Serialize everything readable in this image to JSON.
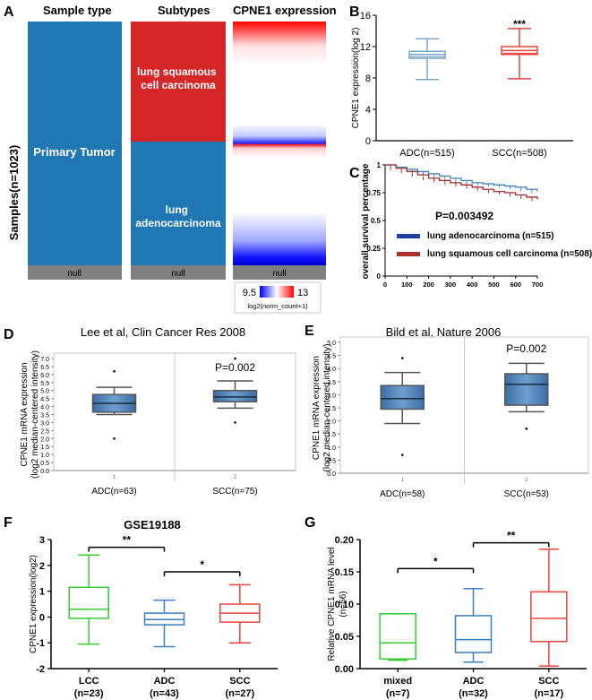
{
  "panel_letters": [
    "A",
    "B",
    "C",
    "D",
    "E",
    "F",
    "G"
  ],
  "colors": {
    "blue": "#1f77b4",
    "red": "#d62728",
    "grey": "#808080",
    "adc_line": "#7aa7c7",
    "scc_line": "#e8453c",
    "box_fill_de": "#4f81bd",
    "km_blue": "#4682b4",
    "km_red": "#a52a2a",
    "lcc": "#33cc33",
    "legend_blue": "#1a3fa0",
    "legend_red": "#b03030"
  },
  "heatmap": {
    "headers": [
      "Sample type",
      "Subtypes",
      "CPNE1 expression"
    ],
    "y_label": "Samples(n=1023)",
    "primary_tumor": "Primary Tumor",
    "subtype_scc": "lung squamous\ncell carcinoma",
    "subtype_adc": "lung\nadenocarcinoma",
    "null_label": "null",
    "counts": {
      "scc": 508,
      "adc": 515
    },
    "colorbar": {
      "min": "9.5",
      "max": "13",
      "label": "log2(norm_count+1)"
    }
  },
  "chart_data": [
    {
      "panel": "B",
      "type": "box",
      "categories": [
        "ADC(n=515)",
        "SCC(n=508)"
      ],
      "boxes": [
        {
          "min": 7.8,
          "q1": 10.5,
          "median": 11.0,
          "q3": 11.4,
          "max": 13.0,
          "color": "#7aa7c7"
        },
        {
          "min": 7.9,
          "q1": 11.0,
          "median": 11.5,
          "q3": 12.0,
          "max": 14.3,
          "color": "#e8453c"
        }
      ],
      "ylabel": "CPNE1 expression(log 2)",
      "ylim": [
        0,
        16
      ],
      "yticks": [
        0,
        4,
        8,
        12,
        16
      ],
      "annotation": "***"
    },
    {
      "panel": "C",
      "type": "line",
      "ylabel": "overall survival percentage",
      "xlim": [
        0,
        700
      ],
      "ylim": [
        0,
        1.0
      ],
      "xticks": [
        0,
        100,
        200,
        300,
        400,
        500,
        600,
        700
      ],
      "yticks": [
        "0",
        "0.25",
        "0.5",
        "0.75",
        "1"
      ],
      "ytick_values": [
        0,
        0.25,
        0.5,
        0.75,
        1.0
      ],
      "pvalue": "P=0.003492",
      "series": [
        {
          "name": "lung adenocarcinoma (n=515)",
          "x": [
            0,
            50,
            100,
            150,
            200,
            250,
            300,
            350,
            400,
            450,
            500,
            550,
            600,
            650,
            700
          ],
          "y": [
            1.0,
            0.98,
            0.96,
            0.94,
            0.92,
            0.9,
            0.88,
            0.86,
            0.84,
            0.83,
            0.82,
            0.81,
            0.8,
            0.78,
            0.76
          ]
        },
        {
          "name": "lung squamous cell carcinoma (n=508)",
          "x": [
            0,
            50,
            100,
            150,
            200,
            250,
            300,
            350,
            400,
            450,
            500,
            550,
            600,
            650,
            700
          ],
          "y": [
            1.0,
            0.97,
            0.94,
            0.91,
            0.88,
            0.86,
            0.84,
            0.82,
            0.8,
            0.78,
            0.76,
            0.75,
            0.73,
            0.71,
            0.69
          ]
        }
      ]
    },
    {
      "panel": "D",
      "type": "box",
      "title": "Lee et al, Clin Cancer Res 2008",
      "ylabel": "CPNE1 mRNA expression\n(log2 median-centered intensity)",
      "ylim": [
        0,
        7.0
      ],
      "yticks": [
        "0.0",
        "0.5",
        "1.0",
        "1.5",
        "2.0",
        "2.5",
        "3.0",
        "3.5",
        "4.0",
        "4.5",
        "5.0",
        "5.5",
        "6.0",
        "6.5",
        "7.0"
      ],
      "ytick_values": [
        0,
        0.5,
        1,
        1.5,
        2,
        2.5,
        3,
        3.5,
        4,
        4.5,
        5,
        5.5,
        6,
        6.5,
        7
      ],
      "slot_numbers": [
        "1",
        "2"
      ],
      "categories": [
        "ADC(n=63)",
        "SCC(n=75)"
      ],
      "boxes": [
        {
          "min": 3.5,
          "q1": 3.65,
          "median": 4.2,
          "q3": 4.75,
          "max": 5.2,
          "outliers": [
            6.2,
            2.0
          ]
        },
        {
          "min": 3.9,
          "q1": 4.3,
          "median": 4.6,
          "q3": 5.0,
          "max": 5.6,
          "outliers": [
            3.0,
            7.0
          ]
        }
      ],
      "pvalue": "P=0.002"
    },
    {
      "panel": "E",
      "type": "box",
      "title": "Bild et al, Nature 2006",
      "ylabel": "CPNE1 mRNA expression\n(log2 median-centered intensity)",
      "ylim": [
        0,
        5.0
      ],
      "yticks": [
        "0.0",
        "0.5",
        "1.0",
        "1.5",
        "2.0",
        "2.5",
        "3.0",
        "3.5",
        "4.0",
        "4.5",
        "5.0"
      ],
      "ytick_values": [
        0,
        0.5,
        1,
        1.5,
        2,
        2.5,
        3,
        3.5,
        4,
        4.5,
        5
      ],
      "slot_numbers": [
        "1",
        "2"
      ],
      "categories": [
        "ADC(n=58)",
        "SCC(n=53)"
      ],
      "boxes": [
        {
          "min": 1.9,
          "q1": 2.45,
          "median": 2.85,
          "q3": 3.35,
          "max": 3.85,
          "outliers": [
            4.4,
            0.7
          ]
        },
        {
          "min": 2.35,
          "q1": 2.6,
          "median": 3.4,
          "q3": 3.8,
          "max": 4.2,
          "outliers": [
            1.7
          ]
        }
      ],
      "pvalue": "P=0.002"
    },
    {
      "panel": "F",
      "type": "box",
      "title": "GSE19188",
      "ylabel": "CPNE1 expression(log2)",
      "ylim": [
        -2,
        3
      ],
      "yticks": [
        "-2",
        "-1",
        "0",
        "1",
        "2",
        "3"
      ],
      "ytick_values": [
        -2,
        -1,
        0,
        1,
        2,
        3
      ],
      "categories": [
        "LCC",
        "ADC",
        "SCC"
      ],
      "counts": [
        "(n=23)",
        "(n=43)",
        "(n=27)"
      ],
      "boxes": [
        {
          "min": -1.05,
          "q1": -0.05,
          "median": 0.3,
          "q3": 1.15,
          "max": 2.4,
          "color": "#33cc33"
        },
        {
          "min": -1.15,
          "q1": -0.3,
          "median": -0.1,
          "q3": 0.15,
          "max": 0.65,
          "color": "#3a7fc0"
        },
        {
          "min": -1.0,
          "q1": -0.2,
          "median": 0.15,
          "q3": 0.5,
          "max": 1.25,
          "color": "#e8453c"
        }
      ],
      "significance": [
        {
          "from": 0,
          "to": 1,
          "level": 2.7,
          "label": "**"
        },
        {
          "from": 1,
          "to": 2,
          "level": 1.75,
          "label": "*"
        }
      ]
    },
    {
      "panel": "G",
      "type": "box",
      "ylabel": "Relative CPNE1 mRNA level\n(n=56)",
      "ylim": [
        0,
        0.2
      ],
      "yticks": [
        "0.00",
        "0.05",
        "0.10",
        "0.15",
        "0.20"
      ],
      "ytick_values": [
        0,
        0.05,
        0.1,
        0.15,
        0.2
      ],
      "categories": [
        "mixed",
        "ADC",
        "SCC"
      ],
      "counts": [
        "(n=7)",
        "(n=32)",
        "(n=17)"
      ],
      "boxes": [
        {
          "min": 0.013,
          "q1": 0.015,
          "median": 0.04,
          "q3": 0.085,
          "max": 0.085,
          "color": "#33cc33"
        },
        {
          "min": 0.01,
          "q1": 0.025,
          "median": 0.045,
          "q3": 0.082,
          "max": 0.124,
          "color": "#3a7fc0"
        },
        {
          "min": 0.004,
          "q1": 0.042,
          "median": 0.078,
          "q3": 0.119,
          "max": 0.185,
          "color": "#e8453c"
        }
      ],
      "significance": [
        {
          "from": 0,
          "to": 1,
          "level": 0.155,
          "label": "*"
        },
        {
          "from": 1,
          "to": 2,
          "level": 0.195,
          "label": "**"
        }
      ]
    }
  ]
}
